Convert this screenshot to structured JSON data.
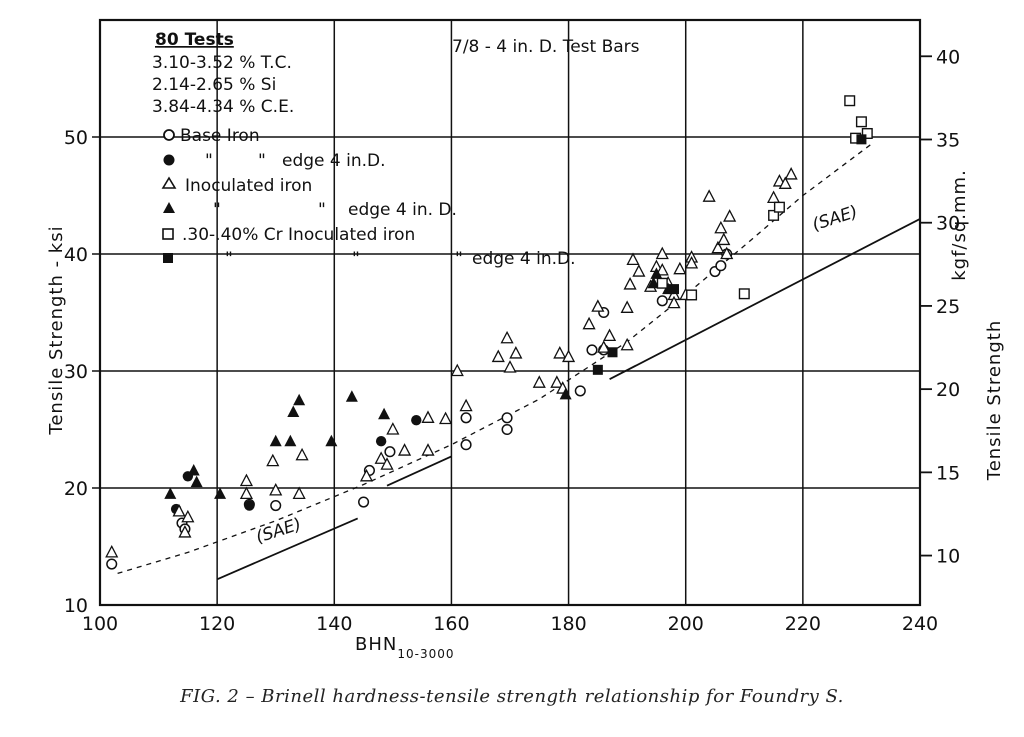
{
  "chart_data": {
    "type": "scatter",
    "title": "7/8 - 4 in. D. Test Bars",
    "xlabel": "BHN",
    "xlabel_sub": "10-3000",
    "ylabel": "Tensile Strength - ksi",
    "ylabel_right": "Tensile Strength",
    "ylabel_right_unit": "kgf/sq.mm.",
    "xlim": [
      100,
      240
    ],
    "ylim": [
      10,
      60
    ],
    "ylim_right_kgf": [
      7.03,
      42.18
    ],
    "x_ticks": [
      100,
      120,
      140,
      160,
      180,
      200,
      220,
      240
    ],
    "x_tick_labels": [
      "100",
      "120",
      "140",
      "160",
      "180",
      "200",
      "220",
      "240"
    ],
    "y_ticks": [
      10,
      20,
      30,
      40,
      50
    ],
    "y_tick_labels": [
      "10",
      "20",
      "30",
      "40",
      "50"
    ],
    "y_right_ticks": [
      10,
      15,
      20,
      25,
      30,
      35,
      40
    ],
    "y_right_tick_labels": [
      "10",
      "15",
      "20",
      "25",
      "30",
      "35",
      "40"
    ],
    "grid": true,
    "stats": {
      "heading": "80 Tests",
      "lines": [
        "3.10-3.52 % T.C.",
        "2.14-2.65 % Si",
        "3.84-4.34 % C.E."
      ]
    },
    "legend_placement": "top-left",
    "series": [
      {
        "name": "Base Iron",
        "marker": "circle-open",
        "points": [
          [
            102,
            13.5
          ],
          [
            114,
            17
          ],
          [
            114.5,
            16.5
          ],
          [
            125.5,
            18.6
          ],
          [
            130,
            18.5
          ],
          [
            145,
            18.8
          ],
          [
            146,
            21.5
          ],
          [
            149.5,
            23.1
          ],
          [
            162.5,
            23.7
          ],
          [
            162.5,
            26
          ],
          [
            169.5,
            25
          ],
          [
            169.5,
            26
          ],
          [
            182,
            28.3
          ],
          [
            184,
            31.8
          ],
          [
            186,
            35
          ],
          [
            186,
            31.8
          ],
          [
            196,
            36
          ],
          [
            205,
            38.5
          ],
          [
            206,
            39
          ],
          [
            207,
            40
          ]
        ]
      },
      {
        "name": "Base Iron edge 4 in.D.",
        "marker": "circle-filled",
        "points": [
          [
            113,
            18.2
          ],
          [
            115,
            21
          ],
          [
            125.5,
            18.5
          ],
          [
            148,
            24
          ],
          [
            154,
            25.8
          ]
        ]
      },
      {
        "name": "Inoculated iron",
        "marker": "triangle-open",
        "points": [
          [
            102,
            14.5
          ],
          [
            113.5,
            18
          ],
          [
            114.5,
            16.2
          ],
          [
            115,
            17.5
          ],
          [
            125,
            19.5
          ],
          [
            125,
            20.6
          ],
          [
            129.5,
            22.3
          ],
          [
            130,
            19.8
          ],
          [
            134,
            19.5
          ],
          [
            134.5,
            22.8
          ],
          [
            145.5,
            21
          ],
          [
            148,
            22.5
          ],
          [
            149,
            22
          ],
          [
            150,
            25
          ],
          [
            152,
            23.2
          ],
          [
            156,
            26
          ],
          [
            156,
            23.2
          ],
          [
            159,
            25.9
          ],
          [
            161,
            30
          ],
          [
            162.5,
            27
          ],
          [
            168,
            31.2
          ],
          [
            169.5,
            32.8
          ],
          [
            170,
            30.3
          ],
          [
            171,
            31.5
          ],
          [
            175,
            29
          ],
          [
            178,
            29
          ],
          [
            178.5,
            31.5
          ],
          [
            179,
            28.5
          ],
          [
            180,
            31.2
          ],
          [
            183.5,
            34
          ],
          [
            185,
            35.5
          ],
          [
            186,
            32
          ],
          [
            187,
            33
          ],
          [
            190,
            32.2
          ],
          [
            190,
            35.4
          ],
          [
            190.5,
            37.4
          ],
          [
            191,
            39.5
          ],
          [
            192,
            38.5
          ],
          [
            194,
            37.2
          ],
          [
            195,
            38.9
          ],
          [
            196,
            40
          ],
          [
            196,
            38.6
          ],
          [
            197,
            37.5
          ],
          [
            198,
            36.5
          ],
          [
            198,
            35.8
          ],
          [
            199,
            38.7
          ],
          [
            200,
            36.5
          ],
          [
            201,
            39.7
          ],
          [
            201,
            39.2
          ],
          [
            204,
            44.9
          ],
          [
            205.5,
            40.5
          ],
          [
            206,
            42.2
          ],
          [
            206.5,
            41.2
          ],
          [
            207,
            40
          ],
          [
            207.5,
            43.2
          ],
          [
            215,
            44.8
          ],
          [
            216,
            46.2
          ],
          [
            217,
            46
          ],
          [
            218,
            46.8
          ]
        ]
      },
      {
        "name": "Inoculated iron edge 4 in. D.",
        "marker": "triangle-filled",
        "points": [
          [
            112,
            19.5
          ],
          [
            116,
            21.5
          ],
          [
            116.5,
            20.5
          ],
          [
            120.5,
            19.5
          ],
          [
            130,
            24
          ],
          [
            132.5,
            24
          ],
          [
            133,
            26.5
          ],
          [
            134,
            27.5
          ],
          [
            139.5,
            24
          ],
          [
            143,
            27.8
          ],
          [
            148.5,
            26.3
          ],
          [
            179.5,
            28
          ],
          [
            194.5,
            37.5
          ],
          [
            195,
            38.3
          ],
          [
            197,
            37
          ]
        ]
      },
      {
        "name": ".30-.40% Cr Inoculated iron",
        "marker": "square-open",
        "points": [
          [
            196,
            37.5
          ],
          [
            201,
            36.5
          ],
          [
            210,
            36.6
          ],
          [
            215,
            43.3
          ],
          [
            216,
            44
          ],
          [
            228,
            53.1
          ],
          [
            229,
            49.9
          ],
          [
            230,
            51.3
          ],
          [
            231,
            50.3
          ]
        ]
      },
      {
        "name": ".30-.40% Cr Inoculated iron edge 4 in.D.",
        "marker": "square-filled",
        "points": [
          [
            185,
            30.1
          ],
          [
            187.5,
            31.6
          ],
          [
            198,
            37
          ],
          [
            230,
            49.8
          ]
        ]
      }
    ],
    "annotations": [
      {
        "text": "(SAE)",
        "x": 127,
        "y": 15.3,
        "angle": -18
      },
      {
        "text": "(SAE)",
        "x": 222,
        "y": 42,
        "angle": -18
      }
    ],
    "curves": [
      {
        "kind": "SAE minimum",
        "style": "solid",
        "points": [
          [
            120,
            12.2
          ],
          [
            144,
            17.4
          ]
        ]
      },
      {
        "kind": "SAE minimum",
        "style": "solid",
        "points": [
          [
            149,
            20.2
          ],
          [
            160,
            22.7
          ]
        ]
      },
      {
        "kind": "SAE minimum",
        "style": "solid",
        "points": [
          [
            187,
            29.3
          ],
          [
            240,
            43
          ]
        ]
      },
      {
        "kind": "trend",
        "style": "dashed",
        "points": [
          [
            103,
            12.7
          ],
          [
            115,
            14.5
          ],
          [
            130,
            17.2
          ],
          [
            145,
            20.3
          ],
          [
            160,
            23.7
          ],
          [
            175,
            27.6
          ],
          [
            190,
            32.5
          ],
          [
            200,
            36.5
          ],
          [
            210,
            40.7
          ],
          [
            220,
            45
          ],
          [
            232,
            49.5
          ]
        ]
      }
    ]
  },
  "legend_labels": {
    "base": "Base Iron",
    "quote1": "\"",
    "quote2": "\"",
    "edge_short": "edge 4 in.D.",
    "inoculated": "Inoculated iron",
    "quote3": "\"",
    "quote4": "\"",
    "edge_space": "edge 4 in. D.",
    "cr": ".30-.40% Cr Inoculated iron",
    "quote5": "\"",
    "quote6": "\"",
    "quote7": "\"",
    "edge_cr": "edge 4 in.D."
  },
  "caption": "FIG. 2 – Brinell hardness-tensile strength relationship for Foundry S."
}
